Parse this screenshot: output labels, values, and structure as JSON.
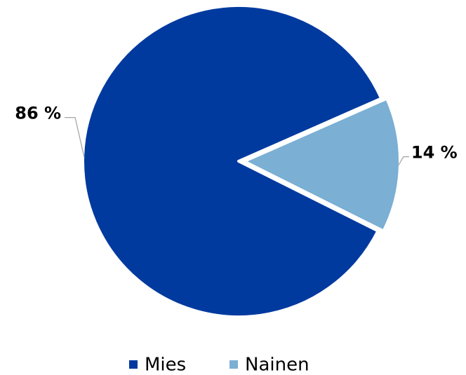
{
  "chart_data": {
    "type": "pie",
    "categories": [
      "Mies",
      "Nainen"
    ],
    "values": [
      86,
      14
    ],
    "value_labels": [
      "86 %",
      "14 %"
    ],
    "colors": [
      "#003a9f",
      "#7bafd4"
    ],
    "legend": "bottom"
  }
}
